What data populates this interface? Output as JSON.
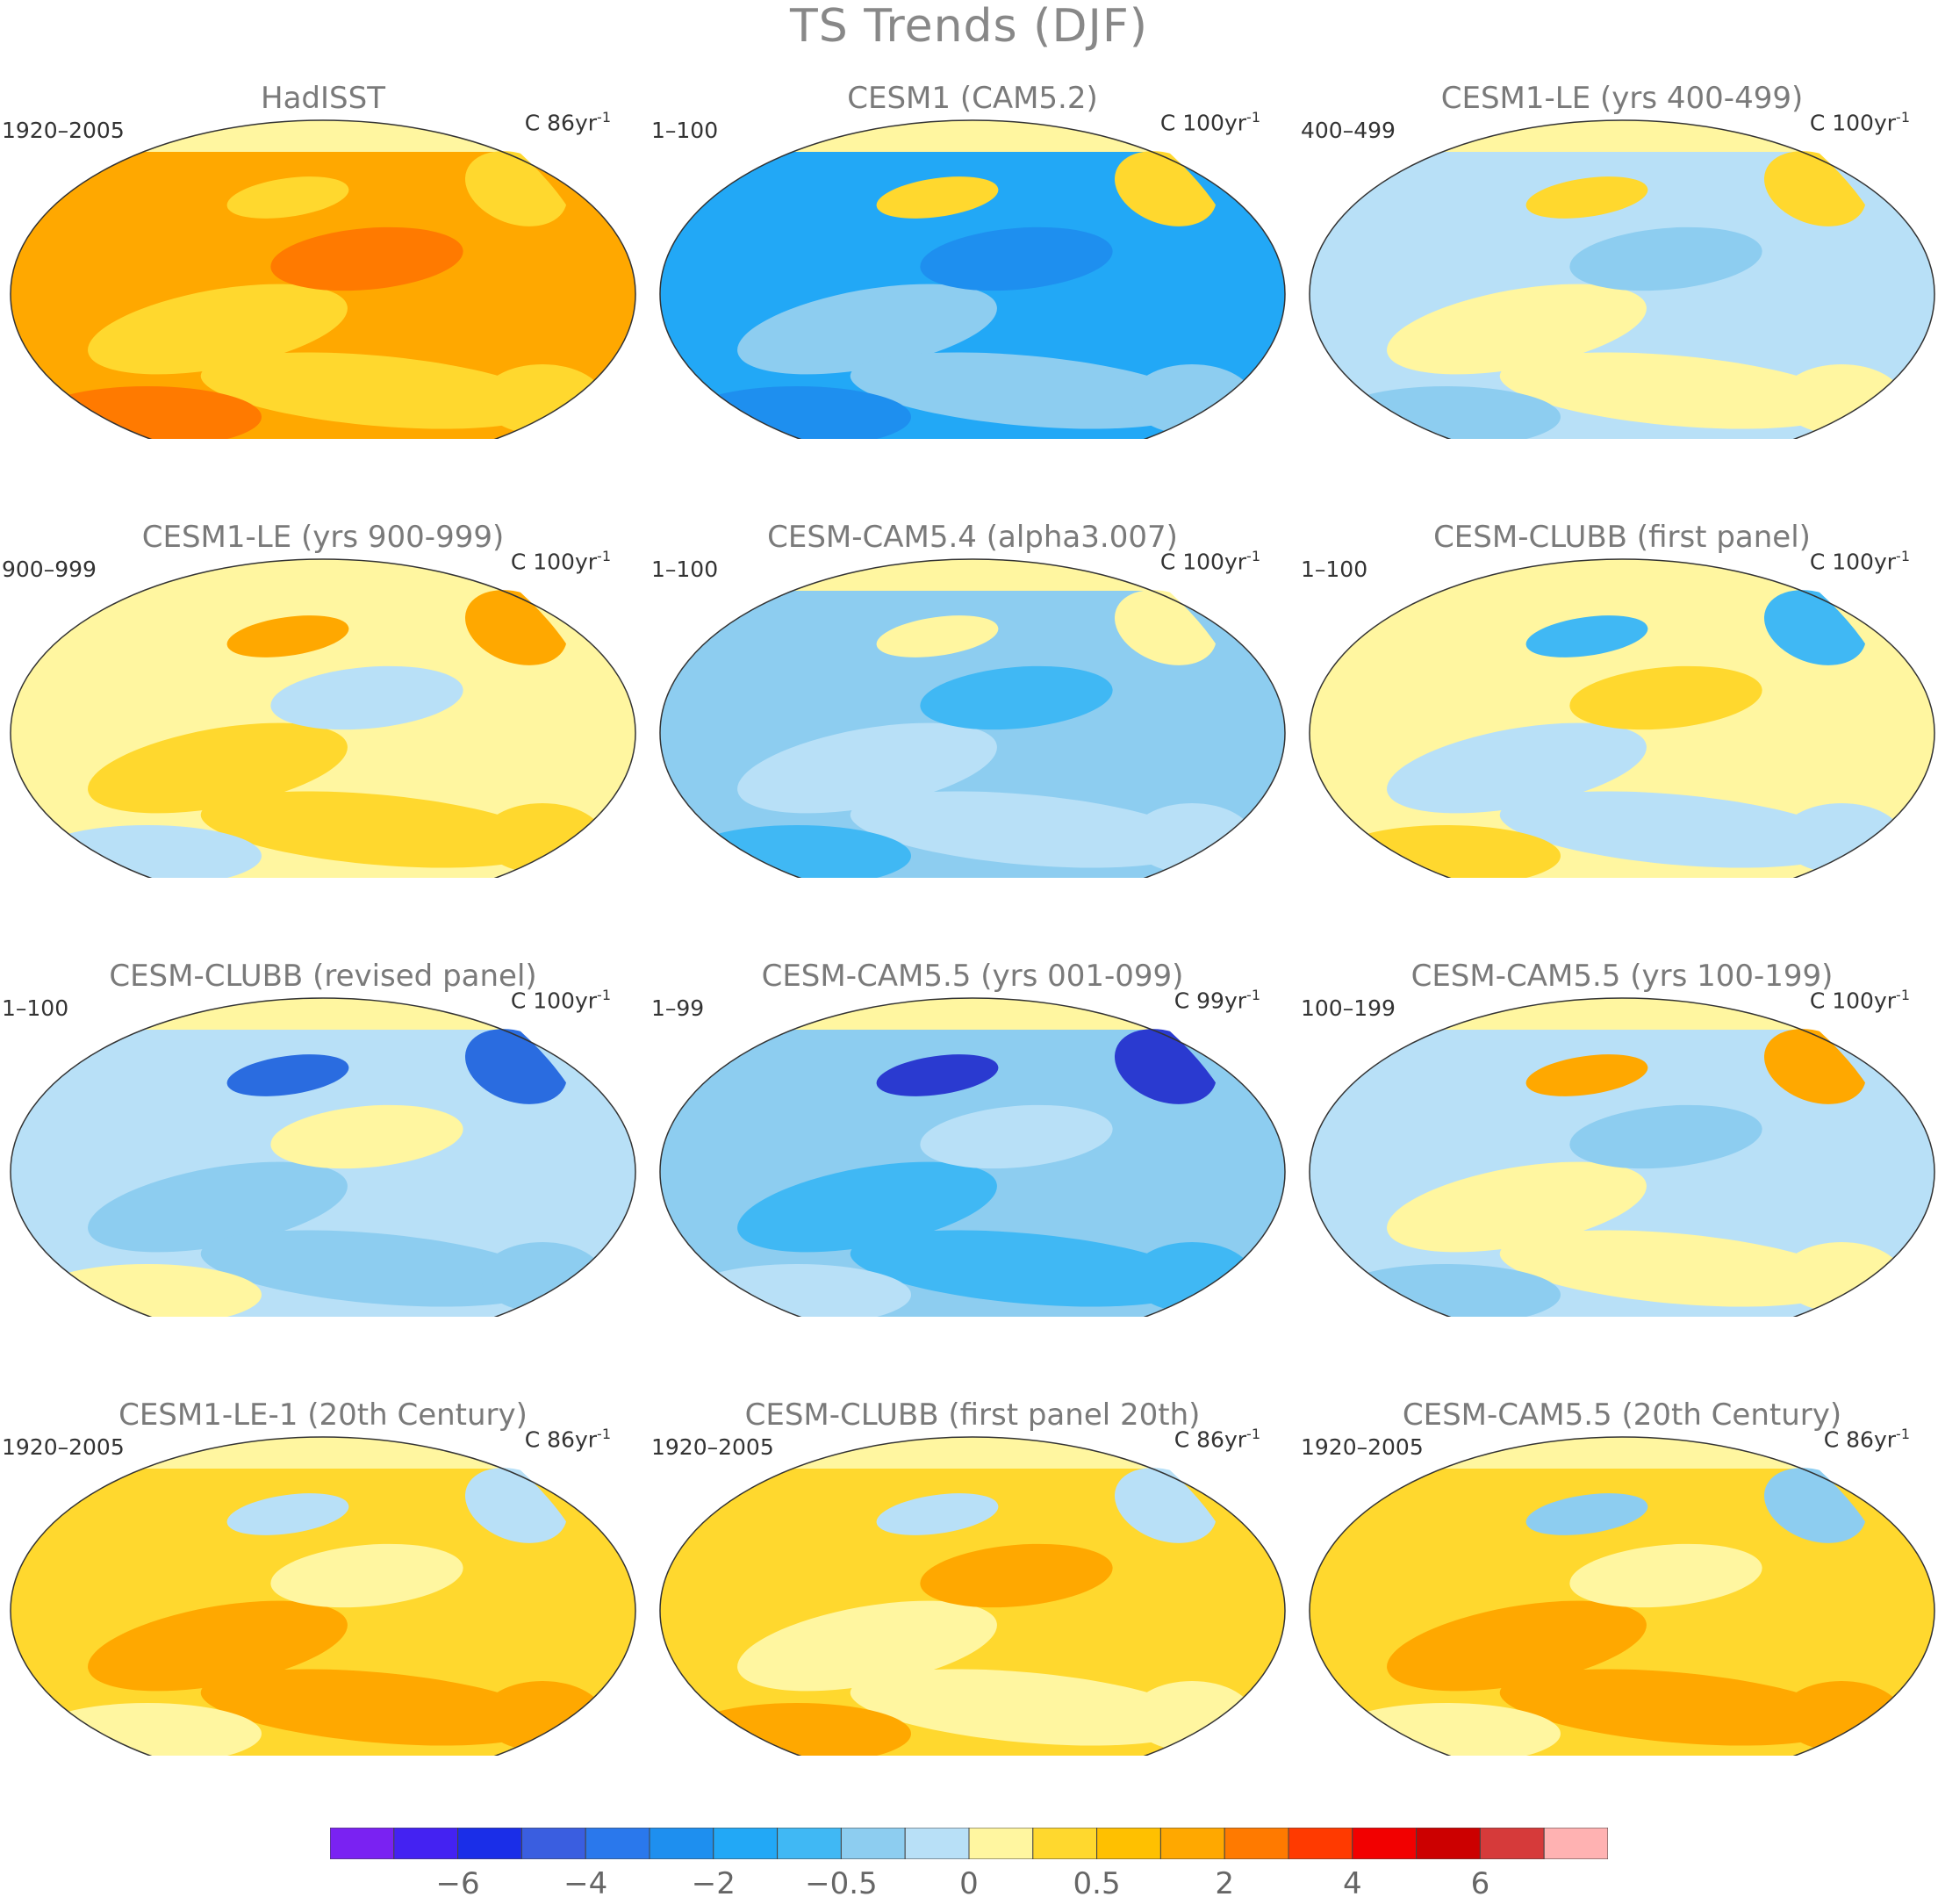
{
  "title": "TS Trends (DJF)",
  "panels": [
    {
      "title": "HadISST",
      "period": "1920–2005",
      "units_prefix": "C 86yr",
      "units_exp": "-1",
      "colors": {
        "base": "#ffa800",
        "a": "#ffd82e",
        "b": "#ff7a00",
        "c": "#ffd82e"
      }
    },
    {
      "title": "CESM1 (CAM5.2)",
      "period": "1–100",
      "units_prefix": "C 100yr",
      "units_exp": "-1",
      "colors": {
        "base": "#22a8f6",
        "a": "#8dcdf0",
        "b": "#1e8fef",
        "c": "#ffd82e"
      }
    },
    {
      "title": "CESM1-LE (yrs 400-499)",
      "period": "400–499",
      "units_prefix": "C 100yr",
      "units_exp": "-1",
      "colors": {
        "base": "#b8e0f7",
        "a": "#fff6a0",
        "b": "#8dcdf0",
        "c": "#ffd82e"
      }
    },
    {
      "title": "CESM1-LE (yrs 900-999)",
      "period": "900–999",
      "units_prefix": "C 100yr",
      "units_exp": "-1",
      "colors": {
        "base": "#fff6a0",
        "a": "#ffd82e",
        "b": "#b8e0f7",
        "c": "#ffa800"
      }
    },
    {
      "title": "CESM-CAM5.4 (alpha3.007)",
      "period": "1–100",
      "units_prefix": "C 100yr",
      "units_exp": "-1",
      "colors": {
        "base": "#8dcdf0",
        "a": "#b8e0f7",
        "b": "#40b8f4",
        "c": "#fff6a0"
      }
    },
    {
      "title": "CESM-CLUBB (first panel)",
      "period": "1–100",
      "units_prefix": "C 100yr",
      "units_exp": "-1",
      "colors": {
        "base": "#fff6a0",
        "a": "#b8e0f7",
        "b": "#ffd82e",
        "c": "#40b8f4"
      }
    },
    {
      "title": "CESM-CLUBB (revised panel)",
      "period": "1–100",
      "units_prefix": "C 100yr",
      "units_exp": "-1",
      "colors": {
        "base": "#b8e0f7",
        "a": "#8dcdf0",
        "b": "#fff6a0",
        "c": "#2a6ce0"
      }
    },
    {
      "title": "CESM-CAM5.5 (yrs 001-099)",
      "period": "1–99",
      "units_prefix": "C 99yr",
      "units_exp": "-1",
      "colors": {
        "base": "#8dcdf0",
        "a": "#40b8f4",
        "b": "#b8e0f7",
        "c": "#2a3ad0"
      }
    },
    {
      "title": "CESM-CAM5.5 (yrs 100-199)",
      "period": "100–199",
      "units_prefix": "C 100yr",
      "units_exp": "-1",
      "colors": {
        "base": "#b8e0f7",
        "a": "#fff6a0",
        "b": "#8dcdf0",
        "c": "#ffa800"
      }
    },
    {
      "title": "CESM1-LE-1 (20th Century)",
      "period": "1920–2005",
      "units_prefix": "C 86yr",
      "units_exp": "-1",
      "colors": {
        "base": "#ffd82e",
        "a": "#ffa800",
        "b": "#fff6a0",
        "c": "#b8e0f7"
      }
    },
    {
      "title": "CESM-CLUBB (first panel 20th)",
      "period": "1920–2005",
      "units_prefix": "C 86yr",
      "units_exp": "-1",
      "colors": {
        "base": "#ffd82e",
        "a": "#fff6a0",
        "b": "#ffa800",
        "c": "#b8e0f7"
      }
    },
    {
      "title": "CESM-CAM5.5 (20th Century)",
      "period": "1920–2005",
      "units_prefix": "C 86yr",
      "units_exp": "-1",
      "colors": {
        "base": "#ffd82e",
        "a": "#ffa800",
        "b": "#fff6a0",
        "c": "#8dcdf0"
      }
    }
  ],
  "colorbar": {
    "colors": [
      "#7a22f2",
      "#4422f2",
      "#1a2ee8",
      "#3a5ee0",
      "#2a78ec",
      "#1e8fef",
      "#22a8f6",
      "#40b8f4",
      "#8dcdf0",
      "#b8e0f7",
      "#fff6a0",
      "#ffd82e",
      "#ffc000",
      "#ffa800",
      "#ff7a00",
      "#ff3a00",
      "#f20000",
      "#cc0000",
      "#d63a3a",
      "#ffb2b2"
    ],
    "labels": [
      {
        "text": "−6",
        "boundary": 2
      },
      {
        "text": "−4",
        "boundary": 4
      },
      {
        "text": "−2",
        "boundary": 6
      },
      {
        "text": "−0.5",
        "boundary": 8
      },
      {
        "text": "0",
        "boundary": 10
      },
      {
        "text": "0.5",
        "boundary": 12
      },
      {
        "text": "2",
        "boundary": 14
      },
      {
        "text": "4",
        "boundary": 16
      },
      {
        "text": "6",
        "boundary": 18
      }
    ]
  }
}
